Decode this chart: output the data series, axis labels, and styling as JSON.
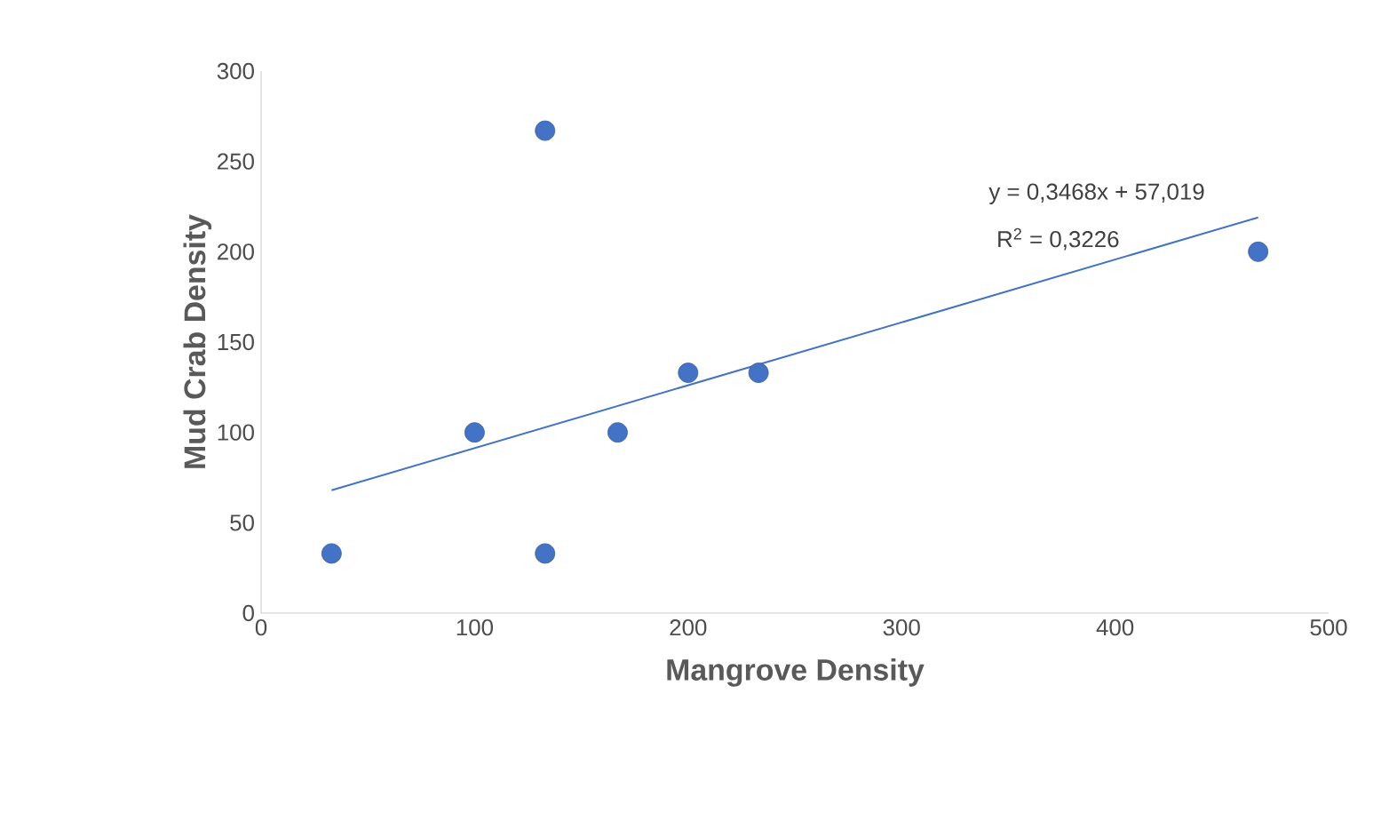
{
  "chart_data": {
    "type": "scatter",
    "xlabel": "Mangrove Density",
    "ylabel": "Mud Crab Density",
    "xlim": [
      0,
      500
    ],
    "xticks": [
      0,
      100,
      200,
      300,
      400,
      500
    ],
    "ylim": [
      0,
      300
    ],
    "yticks": [
      0,
      50,
      100,
      150,
      200,
      250,
      300
    ],
    "grid": false,
    "annotations": [
      "y = 0,3468x + 57,019",
      "R$^{2}$ = 0,3226"
    ],
    "series": [
      {
        "marker": "circle",
        "color": "#4472c4",
        "x": [
          33,
          100,
          133,
          133,
          167,
          200,
          233,
          467
        ],
        "values": [
          33,
          100,
          267,
          33,
          100,
          133,
          133,
          200
        ]
      },
      {
        "type": "line",
        "marker": "none",
        "color": "#4472c4",
        "x": [
          33,
          467
        ],
        "values": [
          68,
          219
        ]
      }
    ]
  }
}
